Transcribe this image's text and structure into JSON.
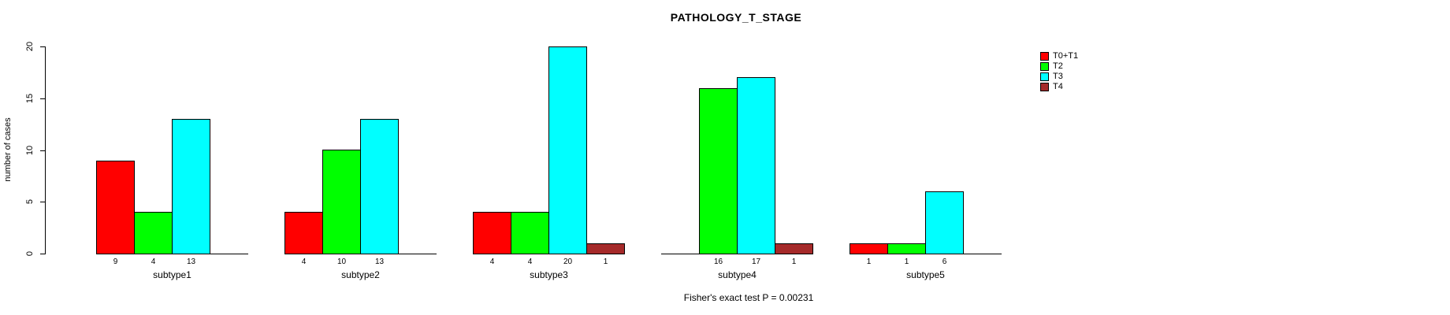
{
  "title": "PATHOLOGY_T_STAGE",
  "footer_annotation": "Fisher's exact test P = 0.00231",
  "y_axis": {
    "label": "number of cases",
    "ticks": [
      0,
      5,
      10,
      15,
      20
    ]
  },
  "legend": {
    "items": [
      {
        "label": "T0+T1",
        "color": "#FF0000"
      },
      {
        "label": "T2",
        "color": "#00FF00"
      },
      {
        "label": "T3",
        "color": "#00FFFF"
      },
      {
        "label": "T4",
        "color": "#A52A2A"
      }
    ]
  },
  "chart_data": {
    "type": "bar",
    "title": "PATHOLOGY_T_STAGE",
    "categories": [
      "subtype1",
      "subtype2",
      "subtype3",
      "subtype4",
      "subtype5"
    ],
    "series": [
      {
        "name": "T0+T1",
        "color": "#FF0000",
        "values": [
          9,
          4,
          4,
          0,
          1
        ]
      },
      {
        "name": "T2",
        "color": "#00FF00",
        "values": [
          4,
          10,
          4,
          16,
          1
        ]
      },
      {
        "name": "T3",
        "color": "#00FFFF",
        "values": [
          13,
          13,
          20,
          17,
          6
        ]
      },
      {
        "name": "T4",
        "color": "#A52A2A",
        "values": [
          0,
          0,
          1,
          1,
          0
        ]
      }
    ],
    "bar_count_labels": [
      [
        "9",
        "4",
        "13",
        ""
      ],
      [
        "4",
        "10",
        "13",
        ""
      ],
      [
        "4",
        "4",
        "20",
        "1"
      ],
      [
        "",
        "16",
        "17",
        "1"
      ],
      [
        "1",
        "1",
        "6",
        ""
      ]
    ],
    "xlabel": "",
    "ylabel": "number of cases",
    "ylim": [
      0,
      20
    ],
    "yticks": [
      0,
      5,
      10,
      15,
      20
    ],
    "grid": false,
    "legend_position": "right",
    "annotation": "Fisher's exact test P = 0.00231"
  }
}
